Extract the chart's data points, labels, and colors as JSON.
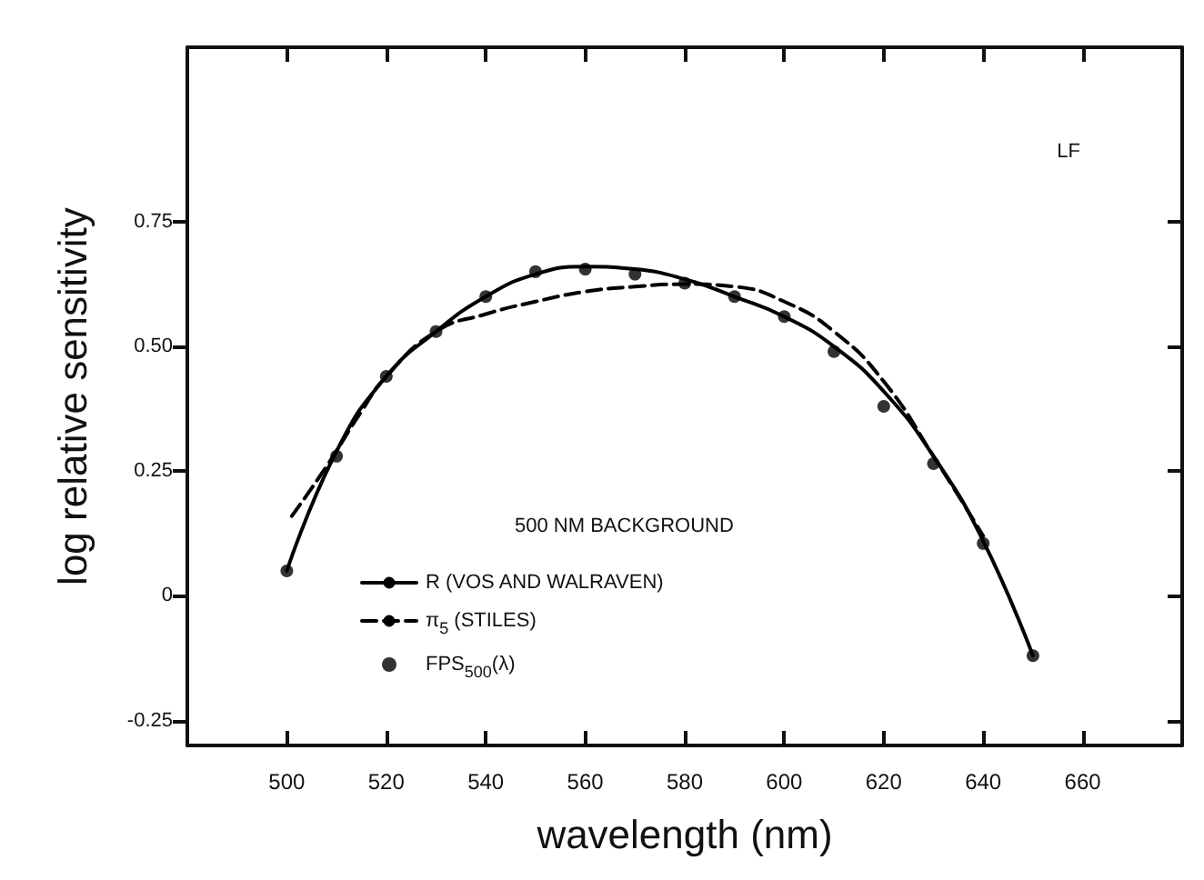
{
  "chart_data": {
    "type": "line",
    "xlabel": "wavelength (nm)",
    "ylabel": "log relative sensitivity",
    "legend_title": "500 NM BACKGROUND",
    "legend": "bottom left",
    "grid": false,
    "annotations": [
      "LF"
    ],
    "xlim": [
      480,
      680
    ],
    "xticks": [
      500,
      520,
      540,
      560,
      580,
      600,
      620,
      640,
      660
    ],
    "ylim": [
      -0.3,
      1.1
    ],
    "yticks": [
      {
        "value": -0.25,
        "label": "-0.25"
      },
      0,
      {
        "value": 0.25,
        "label": "0.25"
      },
      {
        "value": 0.5,
        "label": "0.50"
      },
      {
        "value": 0.75,
        "label": "0.75"
      }
    ],
    "series": [
      {
        "name": "R (VOS AND WALRAVEN)",
        "color": "#000000",
        "line_style": "solid",
        "marker": "none",
        "x": [
          500,
          510,
          520,
          530,
          540,
          550,
          560,
          570,
          580,
          590,
          600,
          610,
          620,
          630,
          640,
          650
        ],
        "values": [
          0.05,
          0.29,
          0.44,
          0.53,
          0.6,
          0.645,
          0.66,
          0.655,
          0.635,
          0.6,
          0.56,
          0.5,
          0.41,
          0.28,
          0.11,
          -0.12
        ]
      },
      {
        "name": "π$_{5}$ (STILES)",
        "color": "#000000",
        "line_style": "dashed",
        "marker": "none",
        "x": [
          501,
          508,
          515,
          520,
          530,
          540,
          550,
          560,
          570,
          580,
          590,
          600,
          610,
          620,
          630,
          640
        ],
        "values": [
          0.16,
          0.26,
          0.37,
          0.44,
          0.53,
          0.565,
          0.59,
          0.61,
          0.62,
          0.625,
          0.62,
          0.59,
          0.53,
          0.43,
          0.28,
          0.12
        ]
      },
      {
        "name": "FPS$_{500}$(λ)",
        "type": "scatter",
        "color": "#000000",
        "marker": "circle",
        "x": [
          500,
          510,
          520,
          530,
          540,
          550,
          560,
          570,
          580,
          590,
          600,
          610,
          620,
          630,
          640,
          650
        ],
        "values": [
          0.05,
          0.28,
          0.44,
          0.53,
          0.6,
          0.65,
          0.655,
          0.645,
          0.627,
          0.6,
          0.56,
          0.49,
          0.38,
          0.265,
          0.105,
          -0.12
        ]
      }
    ]
  }
}
